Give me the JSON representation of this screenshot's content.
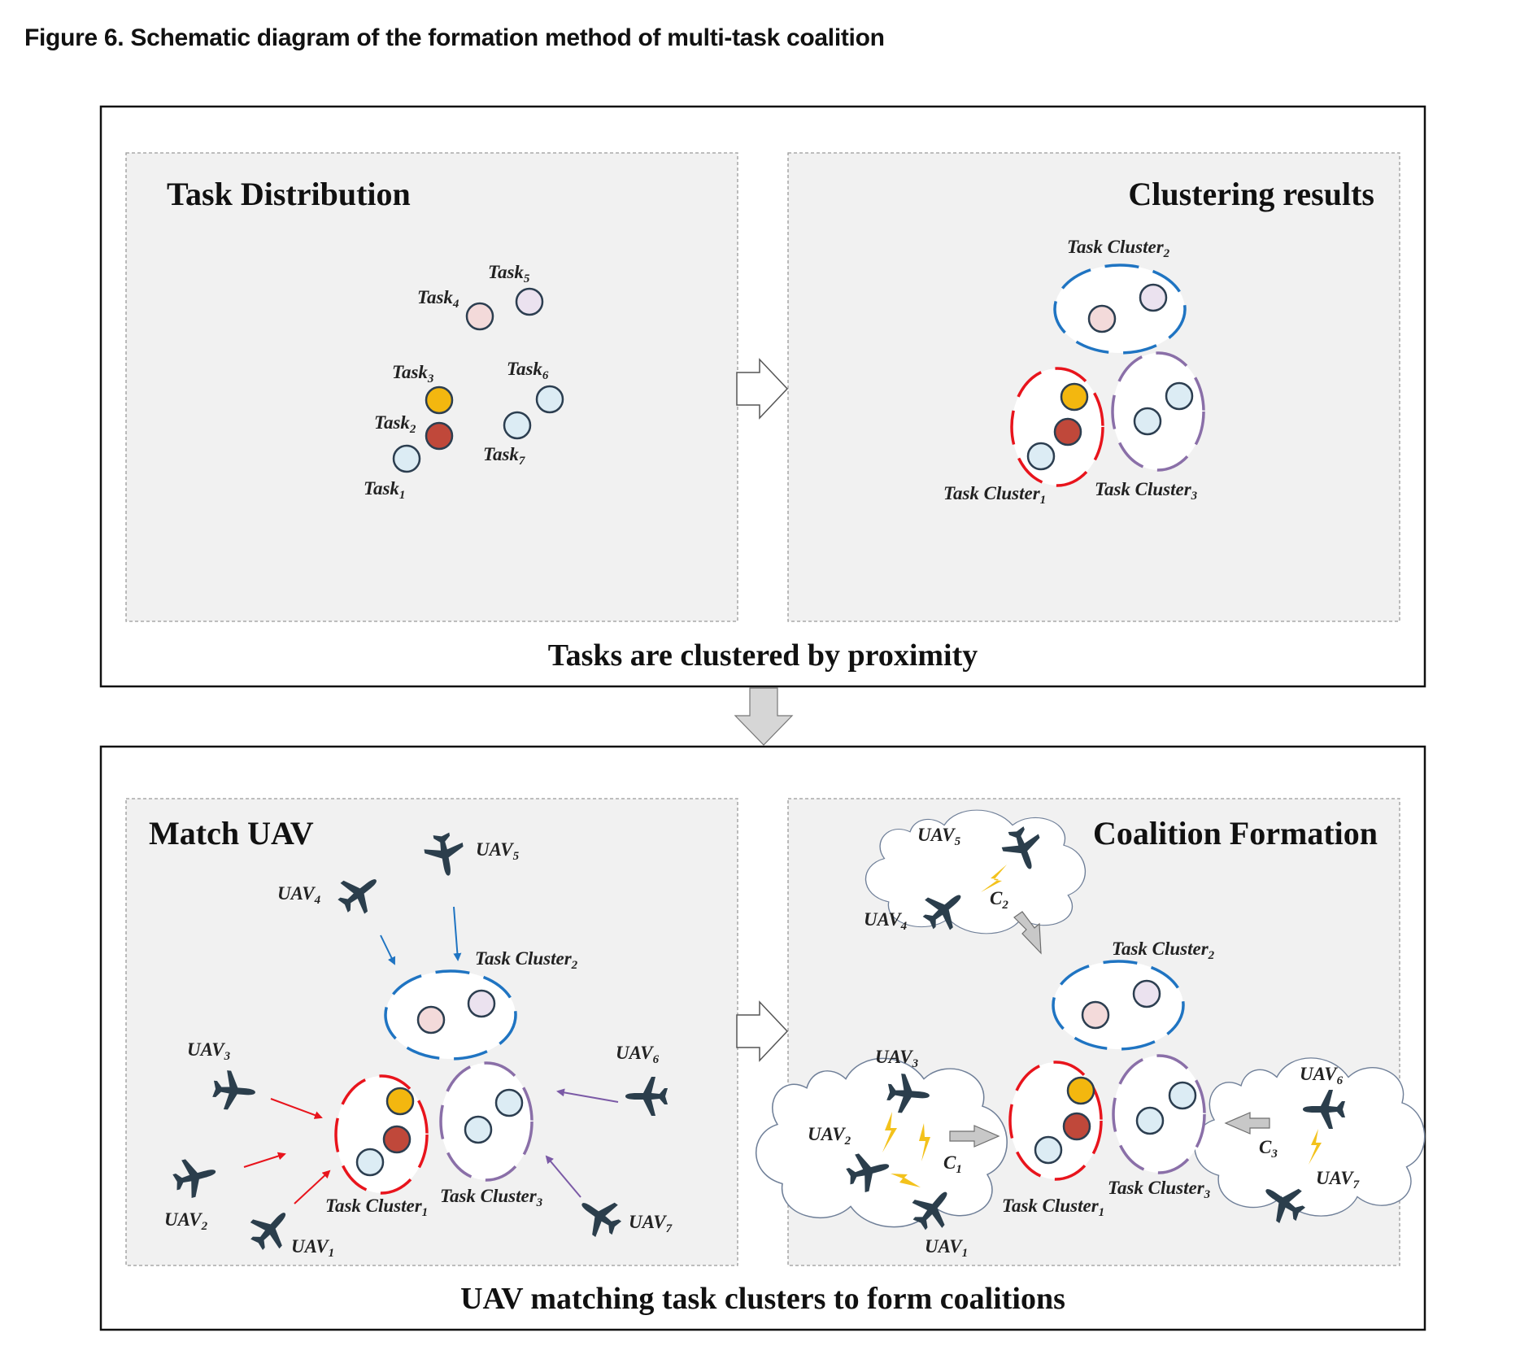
{
  "caption": "Figure 6. Schematic diagram of the formation method of multi-task coalition",
  "panels": {
    "task_distribution": "Task Distribution",
    "clustering_results": "Clustering results",
    "match_uav": "Match UAV",
    "coalition_formation": "Coalition Formation"
  },
  "stage_captions": {
    "top": "Tasks are clustered by proximity",
    "bottom": "UAV matching task clusters to form coalitions"
  },
  "tasks": [
    {
      "base": "Task",
      "sub": "1",
      "color": "#dcecf4"
    },
    {
      "base": "Task",
      "sub": "2",
      "color": "#c0483a"
    },
    {
      "base": "Task",
      "sub": "3",
      "color": "#f3b70f"
    },
    {
      "base": "Task",
      "sub": "4",
      "color": "#f3dada"
    },
    {
      "base": "Task",
      "sub": "5",
      "color": "#ebe2ef"
    },
    {
      "base": "Task",
      "sub": "6",
      "color": "#dcecf4"
    },
    {
      "base": "Task",
      "sub": "7",
      "color": "#dcecf4"
    }
  ],
  "clusters": [
    {
      "base": "Task Cluster",
      "sub": "1",
      "color": "#e8141c"
    },
    {
      "base": "Task Cluster",
      "sub": "2",
      "color": "#1f74c2"
    },
    {
      "base": "Task Cluster",
      "sub": "3",
      "color": "#8a6fa8"
    }
  ],
  "uavs": [
    {
      "base": "UAV",
      "sub": "1"
    },
    {
      "base": "UAV",
      "sub": "2"
    },
    {
      "base": "UAV",
      "sub": "3"
    },
    {
      "base": "UAV",
      "sub": "4"
    },
    {
      "base": "UAV",
      "sub": "5"
    },
    {
      "base": "UAV",
      "sub": "6"
    },
    {
      "base": "UAV",
      "sub": "7"
    }
  ],
  "coalitions": [
    {
      "base": "C",
      "sub": "1"
    },
    {
      "base": "C",
      "sub": "2"
    },
    {
      "base": "C",
      "sub": "3"
    }
  ],
  "colors": {
    "panel_bg": "#f1f1f1",
    "aircraft": "#2b3e4c",
    "arrow_red": "#e8141c",
    "arrow_blue": "#1f74c2",
    "arrow_purple": "#7b5aa6",
    "bolt": "#f3c21c"
  }
}
